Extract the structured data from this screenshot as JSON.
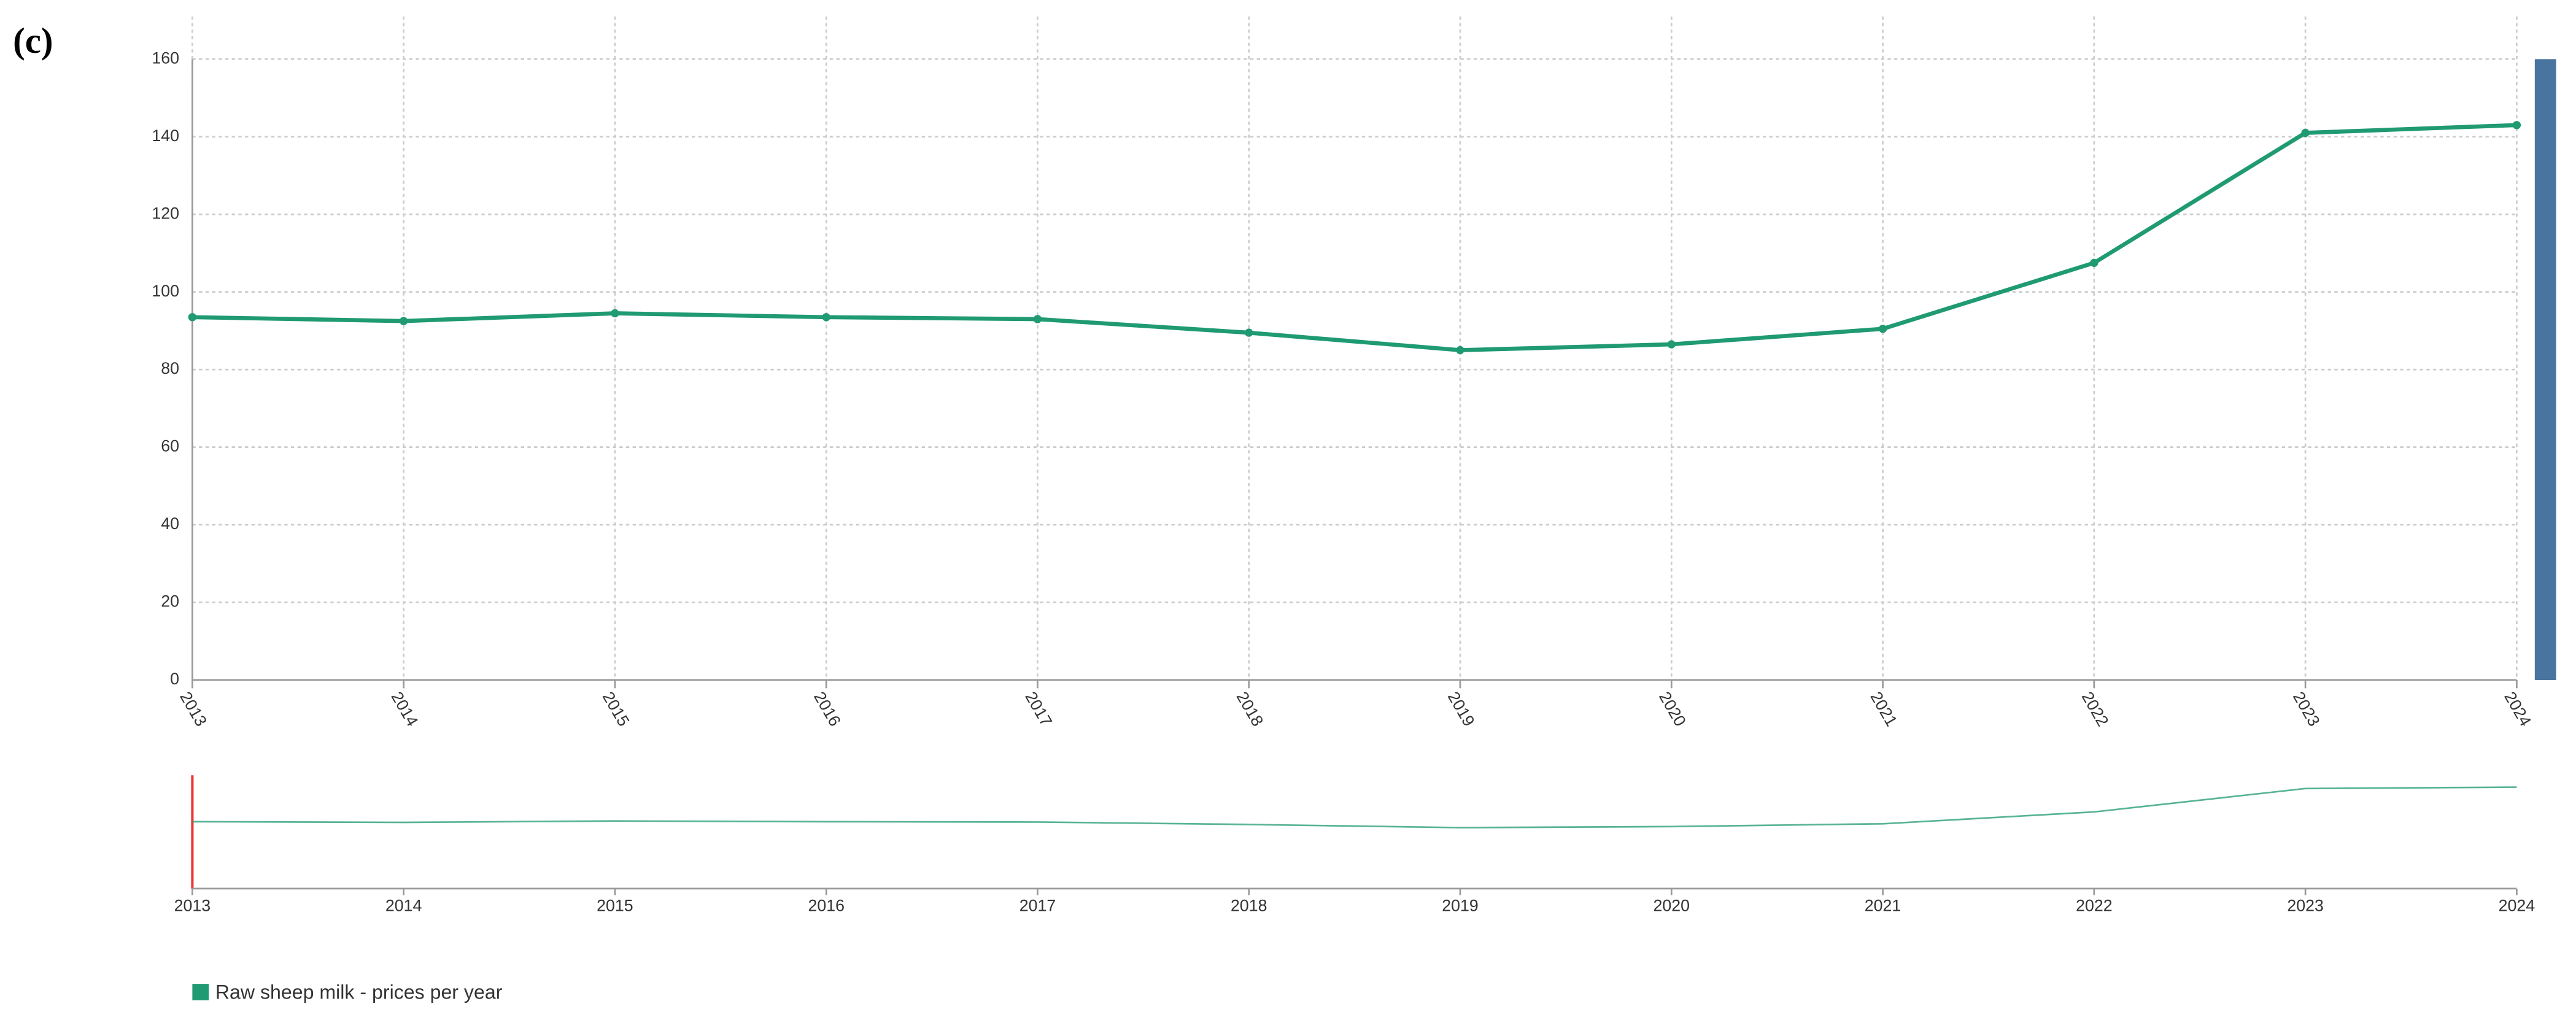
{
  "chart_data": {
    "type": "line",
    "panel_label": "(c)",
    "categories": [
      "2013",
      "2014",
      "2015",
      "2016",
      "2017",
      "2018",
      "2019",
      "2020",
      "2021",
      "2022",
      "2023",
      "2024"
    ],
    "series": [
      {
        "name": "Raw sheep milk - prices per year",
        "color": "#1f9a72",
        "values": [
          93.5,
          92.5,
          94.5,
          93.5,
          93,
          89.5,
          85,
          86.5,
          90.5,
          107.5,
          141,
          143
        ]
      }
    ],
    "ylim": [
      0,
      160
    ],
    "yticks": [
      0,
      20,
      40,
      60,
      80,
      100,
      120,
      140,
      160
    ],
    "grid": true,
    "legend": "bottom-left"
  }
}
